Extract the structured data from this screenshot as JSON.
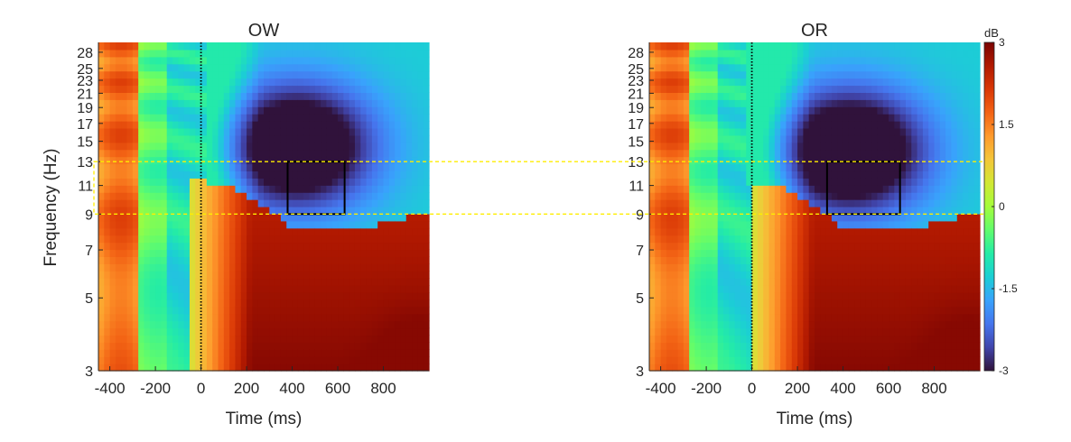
{
  "chart_data": [
    {
      "type": "heatmap",
      "title": "OW",
      "xlabel": "Time (ms)",
      "ylabel": "Frequency (Hz)",
      "xlim": [
        -450,
        1000
      ],
      "ylim": [
        3,
        30
      ],
      "y_scale": "log",
      "x_ticks": [
        "-400",
        "-200",
        "0",
        "200",
        "400",
        "600",
        "800"
      ],
      "x_tick_values": [
        -400,
        -200,
        0,
        200,
        400,
        600,
        800
      ],
      "y_ticks": [
        "3",
        "5",
        "7",
        "9",
        "11",
        "13",
        "15",
        "17",
        "19",
        "21",
        "23",
        "25",
        "28"
      ],
      "y_tick_values": [
        3,
        5,
        7,
        9,
        11,
        13,
        15,
        17,
        19,
        21,
        23,
        25,
        28
      ],
      "stimulus_onset_ms": 0,
      "roi": {
        "time_ms": [
          380,
          630
        ],
        "freq_hz": [
          9,
          13
        ]
      },
      "power_features": [
        {
          "kind": "alpha-beta desynchronization",
          "time_ms": [
            200,
            1000
          ],
          "freq_hz": [
            8,
            30
          ],
          "peak_db": -2.9,
          "peak_time_ms": 420,
          "peak_freq_hz": 14.5
        },
        {
          "kind": "low-frequency synchronization",
          "time_ms": [
            0,
            1000
          ],
          "freq_hz": [
            3,
            11
          ],
          "peak_db": 2.9,
          "peak_time_ms": 950,
          "peak_freq_hz": 3.2
        }
      ]
    },
    {
      "type": "heatmap",
      "title": "OR",
      "xlabel": "Time (ms)",
      "ylabel": "",
      "xlim": [
        -450,
        1000
      ],
      "ylim": [
        3,
        30
      ],
      "y_scale": "log",
      "x_ticks": [
        "-400",
        "-200",
        "0",
        "200",
        "400",
        "600",
        "800"
      ],
      "x_tick_values": [
        -400,
        -200,
        0,
        200,
        400,
        600,
        800
      ],
      "y_ticks": [
        "3",
        "5",
        "7",
        "9",
        "11",
        "13",
        "15",
        "17",
        "19",
        "21",
        "23",
        "25",
        "28"
      ],
      "y_tick_values": [
        3,
        5,
        7,
        9,
        11,
        13,
        15,
        17,
        19,
        21,
        23,
        25,
        28
      ],
      "stimulus_onset_ms": 0,
      "roi": {
        "time_ms": [
          330,
          650
        ],
        "freq_hz": [
          9,
          13
        ]
      },
      "power_features": [
        {
          "kind": "alpha-beta desynchronization",
          "time_ms": [
            150,
            1000
          ],
          "freq_hz": [
            7.5,
            30
          ],
          "peak_db": -3,
          "peak_time_ms": 430,
          "peak_freq_hz": 14
        },
        {
          "kind": "low-frequency synchronization",
          "time_ms": [
            50,
            1000
          ],
          "freq_hz": [
            3,
            11
          ],
          "peak_db": 2.9,
          "peak_time_ms": 950,
          "peak_freq_hz": 3.2
        }
      ]
    }
  ],
  "colorbar": {
    "label": "dB",
    "range": [
      -3,
      3
    ],
    "ticks": [
      "3",
      "1.5",
      "0",
      "-1.5",
      "-3"
    ],
    "tick_values": [
      3,
      1.5,
      0,
      -1.5,
      -3
    ],
    "colormap": "turbo",
    "colors": [
      "#30123b",
      "#4145ab",
      "#4675ed",
      "#39a2fc",
      "#1bcfd4",
      "#24eca6",
      "#61fc6c",
      "#a4fc3b",
      "#d1e834",
      "#f3c63a",
      "#fe9b2d",
      "#f36315",
      "#d93806",
      "#b11901",
      "#7a0402"
    ]
  },
  "band_highlight": {
    "freq_hz": [
      9,
      13
    ],
    "color": "#ffee00"
  },
  "colors": {
    "roi_box": "#000000",
    "onset_line": "#000000",
    "axis": "#262626"
  }
}
